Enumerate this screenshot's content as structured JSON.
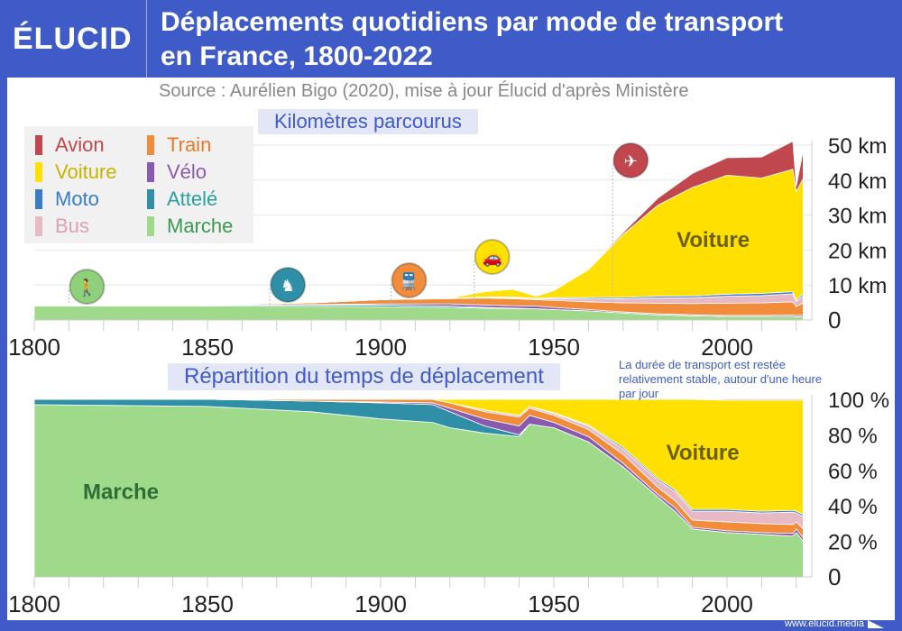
{
  "header": {
    "logo": "ÉLUCID",
    "title_line1": "Déplacements quotidiens par mode de transport",
    "title_line2": "en France, 1800-2022",
    "source": "Source : Aurélien Bigo (2020), mise à jour Élucid d'après Ministère"
  },
  "footer": {
    "url": "www.elucid.media"
  },
  "legend": [
    {
      "name": "Avion",
      "color": "#c0474e",
      "text": "#c0474e"
    },
    {
      "name": "Train",
      "color": "#f08c3a",
      "text": "#e87a2a"
    },
    {
      "name": "Voiture",
      "color": "#ffe000",
      "text": "#c9b200"
    },
    {
      "name": "Vélo",
      "color": "#8a5ab0",
      "text": "#8a5ab0"
    },
    {
      "name": "Moto",
      "color": "#3a7cc8",
      "text": "#3a7cc8"
    },
    {
      "name": "Attelé",
      "color": "#2e8fa6",
      "text": "#2aa0a0"
    },
    {
      "name": "Bus",
      "color": "#e8b9c4",
      "text": "#e0a0b4"
    },
    {
      "name": "Marche",
      "color": "#9fd98a",
      "text": "#3a9a50"
    }
  ],
  "chart_data": [
    {
      "type": "area",
      "stacked": true,
      "title": "Kilomètres parcourus",
      "xlim": [
        1800,
        2022
      ],
      "ylim": [
        0,
        50
      ],
      "xticks": [
        "1800",
        "1850",
        "1900",
        "1950",
        "2000"
      ],
      "yticks": [
        "0",
        "10 km",
        "20 km",
        "30 km",
        "40 km",
        "50 km"
      ],
      "grid": true,
      "annotations": [
        {
          "text": "Voiture",
          "x": 1996,
          "y": 23
        }
      ],
      "markers": [
        {
          "icon": "walking-icon",
          "year": 1810,
          "color": "#8fd07a"
        },
        {
          "icon": "carriage-icon",
          "year": 1868,
          "color": "#2e8fa6"
        },
        {
          "icon": "train-icon",
          "year": 1903,
          "color": "#f08c3a"
        },
        {
          "icon": "car-icon",
          "year": 1927,
          "color": "#ffe000"
        },
        {
          "icon": "plane-icon",
          "year": 1967,
          "color": "#c0474e"
        }
      ],
      "x": [
        1800,
        1850,
        1880,
        1900,
        1920,
        1930,
        1938,
        1945,
        1950,
        1960,
        1970,
        1980,
        1990,
        2000,
        2010,
        2019,
        2020,
        2022
      ],
      "series": [
        {
          "name": "Marche",
          "values": [
            4,
            4,
            3.9,
            3.8,
            3.6,
            3.4,
            3.3,
            3.2,
            3,
            2.6,
            2,
            1.5,
            1.2,
            1,
            1,
            1,
            0.9,
            1
          ]
        },
        {
          "name": "Attelé",
          "values": [
            0.1,
            0.2,
            0.4,
            0.5,
            0.4,
            0.2,
            0.1,
            0,
            0,
            0,
            0,
            0,
            0,
            0,
            0,
            0,
            0,
            0
          ]
        },
        {
          "name": "Vélo",
          "values": [
            0,
            0,
            0.1,
            0.3,
            0.6,
            0.7,
            0.7,
            0.8,
            0.6,
            0.4,
            0.3,
            0.3,
            0.3,
            0.3,
            0.3,
            0.4,
            0.4,
            0.4
          ]
        },
        {
          "name": "Train",
          "values": [
            0,
            0.1,
            0.5,
            1.2,
            1.5,
            2,
            2,
            1.8,
            2,
            2.2,
            2.6,
            3,
            3.2,
            3.5,
            3.6,
            3.8,
            2.5,
            3.5
          ]
        },
        {
          "name": "Bus",
          "values": [
            0,
            0,
            0,
            0,
            0.1,
            0.2,
            0.3,
            0.3,
            0.5,
            0.8,
            1.2,
            1.5,
            1.7,
            2,
            2.1,
            2.3,
            1.5,
            2
          ]
        },
        {
          "name": "Moto",
          "values": [
            0,
            0,
            0,
            0,
            0,
            0.1,
            0.2,
            0.1,
            0.3,
            0.4,
            0.4,
            0.5,
            0.5,
            0.6,
            0.6,
            0.6,
            0.4,
            0.6
          ]
        },
        {
          "name": "Voiture",
          "values": [
            0,
            0,
            0,
            0,
            0.1,
            1.5,
            2.2,
            0.6,
            2,
            8,
            18,
            26,
            31,
            34,
            33,
            35,
            31,
            33
          ]
        },
        {
          "name": "Avion",
          "values": [
            0,
            0,
            0,
            0,
            0,
            0,
            0,
            0,
            0,
            0.1,
            0.5,
            2,
            4,
            5,
            6,
            8,
            1.5,
            8
          ]
        }
      ]
    },
    {
      "type": "area",
      "stacked": true,
      "title": "Répartition du temps de déplacement",
      "xlim": [
        1800,
        2022
      ],
      "ylim": [
        0,
        100
      ],
      "xticks": [
        "1800",
        "1850",
        "1900",
        "1950",
        "2000"
      ],
      "yticks": [
        "0",
        "20 %",
        "40 %",
        "60 %",
        "80 %",
        "100 %"
      ],
      "grid": false,
      "annotations": [
        {
          "text": "Voiture",
          "x": 1993,
          "y": 70
        },
        {
          "text": "Marche",
          "x": 1825,
          "y": 48
        },
        {
          "text": "La durée de transport est restée relativement stable, autour d'une heure par jour"
        }
      ],
      "x": [
        1800,
        1850,
        1880,
        1900,
        1915,
        1920,
        1930,
        1940,
        1943,
        1950,
        1960,
        1970,
        1980,
        1985,
        1990,
        2000,
        2010,
        2019,
        2020,
        2022
      ],
      "series": [
        {
          "name": "Marche",
          "values": [
            97,
            96,
            93,
            89,
            87,
            84,
            81,
            79,
            86,
            84,
            76,
            62,
            45,
            37,
            27,
            25,
            24,
            23,
            25,
            20
          ]
        },
        {
          "name": "Attelé",
          "values": [
            3,
            4,
            6,
            9,
            10,
            9,
            4,
            1,
            0,
            0,
            0,
            0,
            0,
            0,
            0,
            0,
            0,
            0,
            0,
            0
          ]
        },
        {
          "name": "Vélo",
          "values": [
            0,
            0,
            0,
            0.5,
            1,
            2,
            4,
            5,
            5,
            3,
            3,
            2,
            1.5,
            2,
            1,
            1,
            1,
            1.5,
            2,
            2
          ]
        },
        {
          "name": "Train",
          "values": [
            0,
            0,
            1,
            1.5,
            2,
            3,
            4,
            5,
            4,
            4,
            4,
            5,
            4,
            4,
            4,
            5,
            5,
            5,
            4,
            5
          ]
        },
        {
          "name": "Bus",
          "values": [
            0,
            0,
            0,
            0,
            0,
            0,
            1,
            1,
            1,
            1,
            2,
            3,
            4,
            5,
            5,
            6,
            6,
            7,
            5,
            7
          ]
        },
        {
          "name": "Moto",
          "values": [
            0,
            0,
            0,
            0,
            0,
            0,
            0,
            0,
            0,
            0.5,
            0.5,
            1,
            1,
            1,
            1,
            1,
            1,
            1,
            1,
            1
          ]
        },
        {
          "name": "Voiture",
          "values": [
            0,
            0,
            0,
            0,
            0,
            2,
            6,
            9,
            4,
            7.5,
            14.5,
            27,
            44.5,
            51,
            62,
            61.5,
            62.5,
            62,
            62.5,
            64.5
          ]
        },
        {
          "name": "Avion",
          "values": [
            0,
            0,
            0,
            0,
            0,
            0,
            0,
            0,
            0,
            0,
            0,
            0,
            0,
            0,
            0,
            0.5,
            0.5,
            0.5,
            0.5,
            0.5
          ]
        }
      ]
    }
  ]
}
